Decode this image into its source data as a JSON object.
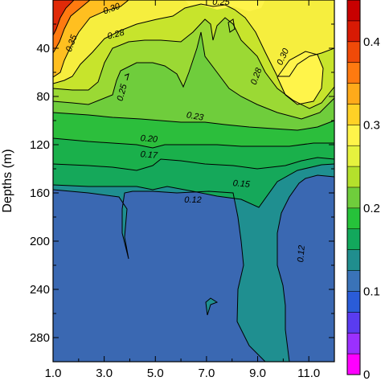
{
  "chart_data": {
    "type": "contour",
    "ylabel": "Depths (m)",
    "xlabel": "",
    "x_ticks": [
      "1.0",
      "3.0",
      "5.0",
      "7.0",
      "9.0",
      "11.0"
    ],
    "y_ticks": [
      "40",
      "80",
      "120",
      "160",
      "200",
      "240",
      "280"
    ],
    "ylim": [
      300,
      0
    ],
    "xlim": [
      1,
      12
    ],
    "contour_labels": [
      "0.35",
      "0.30",
      "0.25",
      "0.28",
      "0.25",
      "0.23",
      "0.20",
      "0.17",
      "0.15",
      "0.12",
      "0.12",
      "0.28",
      "0.30"
    ],
    "contour_levels": [
      0.12,
      0.15,
      0.17,
      0.2,
      0.23,
      0.25,
      0.28,
      0.3,
      0.35,
      0.4
    ],
    "colorbar": {
      "ticks": [
        "0",
        "0.1",
        "0.2",
        "0.3",
        "0.4"
      ],
      "range": [
        0,
        0.45
      ],
      "colors": [
        "#ff00ff",
        "#9b30ff",
        "#5a3cf0",
        "#2a5cd8",
        "#3a73b8",
        "#208e8e",
        "#12a85c",
        "#26c23a",
        "#6fcd3c",
        "#b4e02c",
        "#e6f23e",
        "#fff44a",
        "#ffd126",
        "#ffaa1a",
        "#ff7a10",
        "#f04a08",
        "#d81a04",
        "#c80000"
      ]
    },
    "colors": {
      "deep_blue": "#3a68b2",
      "teal": "#1f8f90",
      "green": "#15a85a",
      "light_green": "#8fd23a",
      "yellow_green": "#c7e42c",
      "yellow": "#fcef42",
      "orange": "#ffab1c",
      "red": "#e02a08"
    }
  }
}
